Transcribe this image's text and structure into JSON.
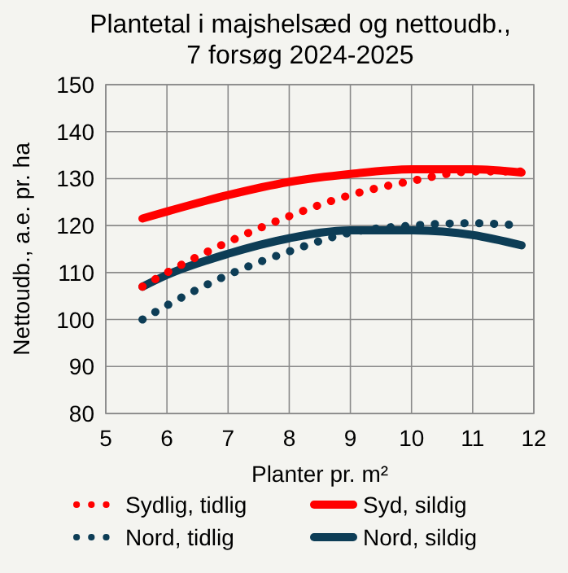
{
  "chart_data": {
    "type": "line",
    "title": "Plantetal i majshelsæd og nettoudb.,\n7 forsøg 2024-2025",
    "xlabel": "Planter pr. m²",
    "ylabel": "Nettoudb., a.e. pr. ha",
    "x": [
      5.6,
      6,
      7,
      8,
      9,
      10,
      11,
      11.8
    ],
    "series": [
      {
        "name": "Sydlig, tidlig",
        "color": "#ff0000",
        "line_style": "dotted",
        "values": [
          107,
          110,
          116.5,
          122,
          126.5,
          129.5,
          131.5,
          131.5
        ]
      },
      {
        "name": "Syd, sildig",
        "color": "#ff0000",
        "line_style": "solid",
        "values": [
          121.5,
          123,
          126.5,
          129.3,
          131,
          132,
          132,
          131.3
        ]
      },
      {
        "name": "Nord, tidlig",
        "color": "#0d3d56",
        "line_style": "dotted",
        "values": [
          100,
          103,
          109.5,
          114.5,
          118.5,
          120,
          120.5,
          120
        ]
      },
      {
        "name": "Nord, sildig",
        "color": "#0d3d56",
        "line_style": "solid",
        "values": [
          107,
          109.5,
          114,
          117.3,
          119,
          119,
          118,
          115.8
        ]
      }
    ],
    "xlim": [
      5,
      12
    ],
    "xticks": [
      5,
      6,
      7,
      8,
      9,
      10,
      11,
      12
    ],
    "ylim": [
      80,
      150
    ],
    "yticks": [
      80,
      90,
      100,
      110,
      120,
      130,
      140,
      150
    ],
    "grid": true,
    "legend": "bottom"
  }
}
